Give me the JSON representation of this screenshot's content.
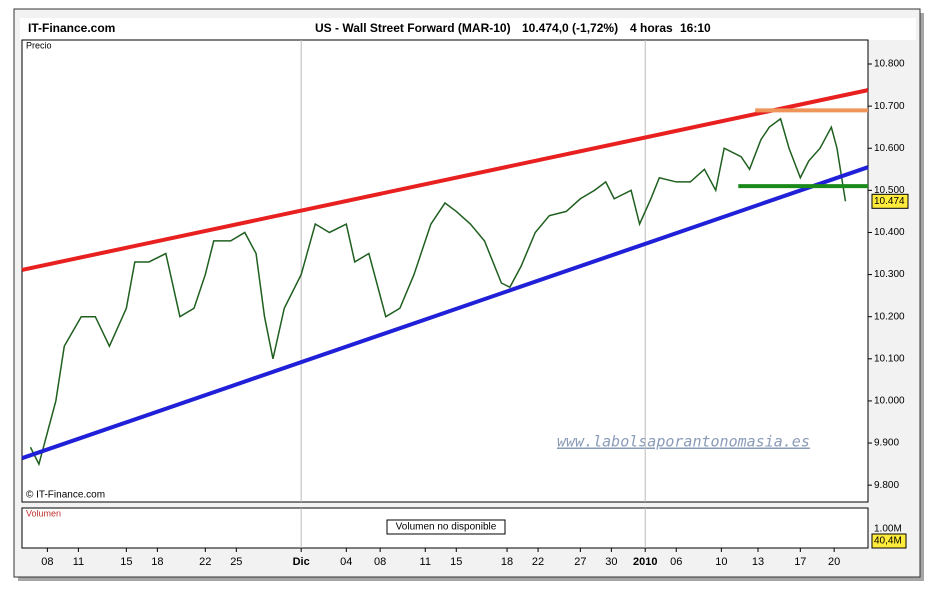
{
  "chart_data": {
    "type": "line",
    "site": "IT-Finance.com",
    "title": "US - Wall Street Forward (MAR-10)",
    "quote": "10.474,0 (-1,72%)",
    "period": "4 horas",
    "time": "16:10",
    "pane_label": "Precio",
    "copyright": "© IT-Finance.com",
    "watermark": "www.labolsaporantonomasia.es",
    "x": [
      3,
      6,
      12,
      15,
      21,
      26,
      31,
      37,
      40,
      45,
      51,
      56,
      61,
      65,
      68,
      74,
      79,
      83,
      86,
      89,
      93,
      99,
      104,
      109,
      115,
      118,
      123,
      129,
      134,
      139,
      145,
      150,
      154,
      159,
      164,
      170,
      173,
      177,
      182,
      187,
      193,
      198,
      203,
      207,
      210,
      216,
      219,
      223,
      226,
      232,
      237,
      242,
      246,
      249,
      255,
      258,
      262,
      265,
      269,
      272,
      276,
      279,
      283,
      287,
      289,
      292
    ],
    "series": [
      {
        "color": "#1f5f1f",
        "values": [
          9.89,
          9.85,
          10.0,
          10.13,
          10.2,
          10.2,
          10.13,
          10.22,
          10.33,
          10.33,
          10.35,
          10.2,
          10.22,
          10.3,
          10.38,
          10.38,
          10.4,
          10.35,
          10.2,
          10.1,
          10.22,
          10.3,
          10.42,
          10.4,
          10.42,
          10.33,
          10.35,
          10.2,
          10.22,
          10.3,
          10.42,
          10.47,
          10.45,
          10.42,
          10.38,
          10.28,
          10.27,
          10.32,
          10.4,
          10.44,
          10.45,
          10.48,
          10.5,
          10.52,
          10.48,
          10.5,
          10.42,
          10.48,
          10.53,
          10.52,
          10.52,
          10.55,
          10.5,
          10.6,
          10.58,
          10.55,
          10.62,
          10.65,
          10.67,
          10.6,
          10.53,
          10.57,
          10.6,
          10.65,
          10.6,
          10.474
        ]
      }
    ],
    "last_price": 10.474,
    "lines": [
      {
        "color": "#e82020",
        "x": [
          0,
          300
        ],
        "y": [
          10.311,
          10.738
        ]
      },
      {
        "color": "#2020d8",
        "x": [
          0,
          300
        ],
        "y": [
          9.864,
          10.555
        ]
      },
      {
        "color": "#f0955a",
        "x": [
          260,
          300
        ],
        "y": [
          10.69,
          10.69
        ]
      },
      {
        "color": "#1a8a1a",
        "x": [
          254,
          300
        ],
        "y": [
          10.51,
          10.51
        ]
      }
    ],
    "xlim": [
      0,
      300
    ],
    "ylim": [
      9.76,
      10.857
    ],
    "xticks": [
      {
        "value": 9,
        "label": "08"
      },
      {
        "value": 20,
        "label": "11"
      },
      {
        "value": 37,
        "label": "15"
      },
      {
        "value": 48,
        "label": "18"
      },
      {
        "value": 65,
        "label": "22"
      },
      {
        "value": 76,
        "label": "25"
      },
      {
        "value": 99,
        "label": "Dic",
        "major": true
      },
      {
        "value": 115,
        "label": "04"
      },
      {
        "value": 127,
        "label": "08"
      },
      {
        "value": 143,
        "label": "11"
      },
      {
        "value": 154,
        "label": "15"
      },
      {
        "value": 172,
        "label": "18"
      },
      {
        "value": 183,
        "label": "22"
      },
      {
        "value": 198,
        "label": "27"
      },
      {
        "value": 209,
        "label": "30"
      },
      {
        "value": 221,
        "label": "2010",
        "major": true
      },
      {
        "value": 232,
        "label": "06"
      },
      {
        "value": 248,
        "label": "10"
      },
      {
        "value": 261,
        "label": "13"
      },
      {
        "value": 276,
        "label": "17"
      },
      {
        "value": 288,
        "label": "20"
      }
    ],
    "yticks": [
      {
        "value": 9.8,
        "label": "9.800"
      },
      {
        "value": 9.9,
        "label": "9.900"
      },
      {
        "value": 10.0,
        "label": "10.000"
      },
      {
        "value": 10.1,
        "label": "10.100"
      },
      {
        "value": 10.2,
        "label": "10.200"
      },
      {
        "value": 10.3,
        "label": "10.300"
      },
      {
        "value": 10.4,
        "label": "10.400"
      },
      {
        "value": 10.5,
        "label": "10.500"
      },
      {
        "value": 10.6,
        "label": "10.600"
      },
      {
        "value": 10.7,
        "label": "10.700"
      },
      {
        "value": 10.8,
        "label": "10.800"
      }
    ],
    "volume": {
      "title": "Volumen",
      "note": "Volumen no disponible",
      "tick": "1.00M",
      "last": "40,4M"
    }
  }
}
